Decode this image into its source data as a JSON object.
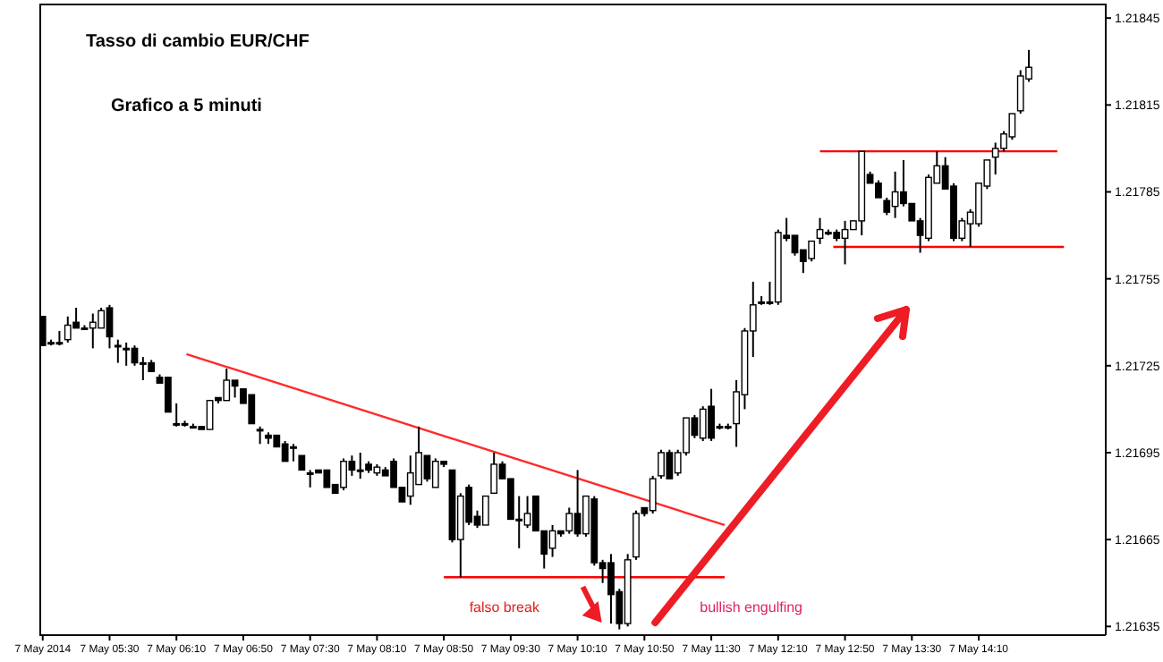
{
  "chart_data": {
    "type": "candlestick",
    "title": "Tasso di cambio EUR/CHF",
    "subtitle": "Grafico a 5 minuti",
    "annotations": [
      "falso break",
      "bullish engulfing"
    ],
    "color": "#000000",
    "x": [
      "2014-05-07T04:50",
      "2014-05-07T04:55",
      "2014-05-07T05:00",
      "2014-05-07T05:05",
      "2014-05-07T05:10",
      "2014-05-07T05:15",
      "2014-05-07T05:20",
      "2014-05-07T05:25",
      "2014-05-07T05:30",
      "2014-05-07T05:35",
      "2014-05-07T05:40",
      "2014-05-07T05:45",
      "2014-05-07T05:50",
      "2014-05-07T05:55",
      "2014-05-07T06:00",
      "2014-05-07T06:05",
      "2014-05-07T06:10",
      "2014-05-07T06:15",
      "2014-05-07T06:20",
      "2014-05-07T06:25",
      "2014-05-07T06:30",
      "2014-05-07T06:35",
      "2014-05-07T06:40",
      "2014-05-07T06:45",
      "2014-05-07T06:50",
      "2014-05-07T06:55",
      "2014-05-07T07:00",
      "2014-05-07T07:05",
      "2014-05-07T07:10",
      "2014-05-07T07:15",
      "2014-05-07T07:20",
      "2014-05-07T07:25",
      "2014-05-07T07:30",
      "2014-05-07T07:35",
      "2014-05-07T07:40",
      "2014-05-07T07:45",
      "2014-05-07T07:50",
      "2014-05-07T07:55",
      "2014-05-07T08:00",
      "2014-05-07T08:05",
      "2014-05-07T08:10",
      "2014-05-07T08:15",
      "2014-05-07T08:20",
      "2014-05-07T08:25",
      "2014-05-07T08:30",
      "2014-05-07T08:35",
      "2014-05-07T08:40",
      "2014-05-07T08:45",
      "2014-05-07T08:50",
      "2014-05-07T08:55",
      "2014-05-07T09:00",
      "2014-05-07T09:05",
      "2014-05-07T09:10",
      "2014-05-07T09:15",
      "2014-05-07T09:20",
      "2014-05-07T09:25",
      "2014-05-07T09:30",
      "2014-05-07T09:35",
      "2014-05-07T09:40",
      "2014-05-07T09:45",
      "2014-05-07T09:50",
      "2014-05-07T09:55",
      "2014-05-07T10:00",
      "2014-05-07T10:05",
      "2014-05-07T10:10",
      "2014-05-07T10:15",
      "2014-05-07T10:20",
      "2014-05-07T10:25",
      "2014-05-07T10:30",
      "2014-05-07T10:35",
      "2014-05-07T10:40",
      "2014-05-07T10:45",
      "2014-05-07T10:50",
      "2014-05-07T10:55",
      "2014-05-07T11:00",
      "2014-05-07T11:05",
      "2014-05-07T11:10",
      "2014-05-07T11:15",
      "2014-05-07T11:20",
      "2014-05-07T11:25",
      "2014-05-07T11:30",
      "2014-05-07T11:35",
      "2014-05-07T11:40",
      "2014-05-07T11:45",
      "2014-05-07T11:50",
      "2014-05-07T11:55",
      "2014-05-07T12:00",
      "2014-05-07T12:05",
      "2014-05-07T12:10",
      "2014-05-07T12:15",
      "2014-05-07T12:20",
      "2014-05-07T12:25",
      "2014-05-07T12:30",
      "2014-05-07T12:35",
      "2014-05-07T12:40",
      "2014-05-07T12:45",
      "2014-05-07T12:50",
      "2014-05-07T12:55",
      "2014-05-07T13:00",
      "2014-05-07T13:05",
      "2014-05-07T13:10",
      "2014-05-07T13:15",
      "2014-05-07T13:20",
      "2014-05-07T13:25",
      "2014-05-07T13:30",
      "2014-05-07T13:35",
      "2014-05-07T13:40",
      "2014-05-07T13:45",
      "2014-05-07T13:50",
      "2014-05-07T13:55",
      "2014-05-07T14:00",
      "2014-05-07T14:05",
      "2014-05-07T14:10",
      "2014-05-07T14:15",
      "2014-05-07T14:20",
      "2014-05-07T14:25",
      "2014-05-07T14:30",
      "2014-05-07T14:35",
      "2014-05-07T14:40"
    ],
    "ohlc": [
      [
        1.21742,
        1.21742,
        1.21732,
        1.21732
      ],
      [
        1.21733,
        1.21734,
        1.21732,
        1.21733
      ],
      [
        1.21733,
        1.21737,
        1.21732,
        1.21733
      ],
      [
        1.21734,
        1.21742,
        1.21733,
        1.21739
      ],
      [
        1.2174,
        1.21745,
        1.21738,
        1.21738
      ],
      [
        1.21738,
        1.21739,
        1.21738,
        1.21738
      ],
      [
        1.21738,
        1.21743,
        1.21731,
        1.2174
      ],
      [
        1.21738,
        1.21745,
        1.21738,
        1.21744
      ],
      [
        1.21745,
        1.21746,
        1.21731,
        1.21735
      ],
      [
        1.21732,
        1.21734,
        1.21726,
        1.21732
      ],
      [
        1.21731,
        1.21733,
        1.21725,
        1.21731
      ],
      [
        1.21731,
        1.21732,
        1.21725,
        1.21726
      ],
      [
        1.21726,
        1.21728,
        1.2172,
        1.21726
      ],
      [
        1.21726,
        1.21727,
        1.21723,
        1.21723
      ],
      [
        1.21721,
        1.21722,
        1.21719,
        1.21719
      ],
      [
        1.21721,
        1.21721,
        1.21709,
        1.21709
      ],
      [
        1.21705,
        1.21712,
        1.21704,
        1.21705
      ],
      [
        1.21705,
        1.21706,
        1.21704,
        1.21705
      ],
      [
        1.21704,
        1.21705,
        1.21704,
        1.21704
      ],
      [
        1.21704,
        1.21704,
        1.21703,
        1.21703
      ],
      [
        1.21703,
        1.21713,
        1.21703,
        1.21713
      ],
      [
        1.21714,
        1.21714,
        1.21712,
        1.21713
      ],
      [
        1.21713,
        1.21724,
        1.21713,
        1.2172
      ],
      [
        1.2172,
        1.2172,
        1.21714,
        1.21718
      ],
      [
        1.21717,
        1.21717,
        1.21712,
        1.21712
      ],
      [
        1.21715,
        1.21715,
        1.21705,
        1.21705
      ],
      [
        1.21703,
        1.21704,
        1.21698,
        1.21703
      ],
      [
        1.21701,
        1.21702,
        1.21698,
        1.217
      ],
      [
        1.21701,
        1.21701,
        1.21697,
        1.21697
      ],
      [
        1.21698,
        1.21699,
        1.21692,
        1.21692
      ],
      [
        1.21697,
        1.21698,
        1.21692,
        1.21697
      ],
      [
        1.21694,
        1.21694,
        1.21689,
        1.21689
      ],
      [
        1.21688,
        1.21689,
        1.21683,
        1.21688
      ],
      [
        1.21689,
        1.21689,
        1.21688,
        1.21688
      ],
      [
        1.21689,
        1.21689,
        1.21683,
        1.21683
      ],
      [
        1.21684,
        1.21684,
        1.21681,
        1.21681
      ],
      [
        1.21683,
        1.21693,
        1.21682,
        1.21692
      ],
      [
        1.21692,
        1.21694,
        1.21687,
        1.21689
      ],
      [
        1.21689,
        1.21695,
        1.21686,
        1.21689
      ],
      [
        1.21691,
        1.21692,
        1.21688,
        1.21689
      ],
      [
        1.21688,
        1.21691,
        1.21687,
        1.2169
      ],
      [
        1.21689,
        1.2169,
        1.21687,
        1.21687
      ],
      [
        1.21692,
        1.21693,
        1.21683,
        1.21683
      ],
      [
        1.21683,
        1.21683,
        1.21678,
        1.21678
      ],
      [
        1.2168,
        1.21694,
        1.21677,
        1.21688
      ],
      [
        1.21684,
        1.21704,
        1.21684,
        1.21695
      ],
      [
        1.21694,
        1.21694,
        1.21685,
        1.21686
      ],
      [
        1.21683,
        1.21693,
        1.21683,
        1.21692
      ],
      [
        1.21692,
        1.21692,
        1.2169,
        1.21691
      ],
      [
        1.21689,
        1.21689,
        1.21664,
        1.21665
      ],
      [
        1.21665,
        1.21681,
        1.21652,
        1.2168
      ],
      [
        1.21683,
        1.21684,
        1.2167,
        1.21671
      ],
      [
        1.21673,
        1.21675,
        1.21669,
        1.2167
      ],
      [
        1.2167,
        1.2168,
        1.2167,
        1.2168
      ],
      [
        1.21681,
        1.21695,
        1.21681,
        1.21691
      ],
      [
        1.21691,
        1.21692,
        1.21686,
        1.21686
      ],
      [
        1.21686,
        1.21686,
        1.21672,
        1.21672
      ],
      [
        1.21672,
        1.2168,
        1.21662,
        1.21672
      ],
      [
        1.2167,
        1.2168,
        1.21669,
        1.21674
      ],
      [
        1.2168,
        1.2168,
        1.21668,
        1.21668
      ],
      [
        1.21668,
        1.21668,
        1.21655,
        1.2166
      ],
      [
        1.21662,
        1.2167,
        1.21659,
        1.21668
      ],
      [
        1.21668,
        1.21668,
        1.21666,
        1.21667
      ],
      [
        1.21668,
        1.21676,
        1.21667,
        1.21674
      ],
      [
        1.21674,
        1.21689,
        1.21666,
        1.21667
      ],
      [
        1.21667,
        1.2168,
        1.21666,
        1.2168
      ],
      [
        1.21679,
        1.2168,
        1.21656,
        1.21657
      ],
      [
        1.21657,
        1.21658,
        1.2165,
        1.21655
      ],
      [
        1.21657,
        1.2166,
        1.21636,
        1.21646
      ],
      [
        1.21647,
        1.21648,
        1.21634,
        1.21636
      ],
      [
        1.21636,
        1.2166,
        1.21635,
        1.21658
      ],
      [
        1.21659,
        1.21675,
        1.21658,
        1.21674
      ],
      [
        1.21676,
        1.21676,
        1.21673,
        1.21674
      ],
      [
        1.21675,
        1.21687,
        1.21674,
        1.21686
      ],
      [
        1.21687,
        1.21696,
        1.21686,
        1.21695
      ],
      [
        1.21695,
        1.21696,
        1.21686,
        1.21686
      ],
      [
        1.21688,
        1.21696,
        1.21687,
        1.21695
      ],
      [
        1.21695,
        1.21707,
        1.21694,
        1.21707
      ],
      [
        1.21707,
        1.21708,
        1.217,
        1.21701
      ],
      [
        1.217,
        1.21711,
        1.21699,
        1.2171
      ],
      [
        1.21711,
        1.21717,
        1.21699,
        1.217
      ],
      [
        1.21704,
        1.21705,
        1.21703,
        1.21704
      ],
      [
        1.21704,
        1.21705,
        1.21703,
        1.21704
      ],
      [
        1.21705,
        1.2172,
        1.21697,
        1.21716
      ],
      [
        1.21715,
        1.21738,
        1.2171,
        1.21737
      ],
      [
        1.21737,
        1.21754,
        1.21728,
        1.21746
      ],
      [
        1.21747,
        1.21749,
        1.21746,
        1.21747
      ],
      [
        1.21747,
        1.21754,
        1.21746,
        1.21747
      ],
      [
        1.21747,
        1.21772,
        1.21746,
        1.21771
      ],
      [
        1.2177,
        1.21776,
        1.21768,
        1.21769
      ],
      [
        1.2177,
        1.2177,
        1.21763,
        1.21764
      ],
      [
        1.21765,
        1.21765,
        1.21757,
        1.21761
      ],
      [
        1.21762,
        1.21768,
        1.21761,
        1.21768
      ],
      [
        1.21769,
        1.21776,
        1.21767,
        1.21772
      ],
      [
        1.21771,
        1.21772,
        1.2177,
        1.21771
      ],
      [
        1.21771,
        1.21772,
        1.21768,
        1.21769
      ],
      [
        1.21769,
        1.21775,
        1.2176,
        1.21772
      ],
      [
        1.21772,
        1.21775,
        1.21772,
        1.21775
      ],
      [
        1.21775,
        1.21799,
        1.2177,
        1.21799
      ],
      [
        1.21791,
        1.21792,
        1.21788,
        1.21788
      ],
      [
        1.21788,
        1.21789,
        1.21783,
        1.21783
      ],
      [
        1.21782,
        1.21783,
        1.21777,
        1.21778
      ],
      [
        1.2178,
        1.21792,
        1.21776,
        1.21785
      ],
      [
        1.21785,
        1.21796,
        1.2178,
        1.21781
      ],
      [
        1.21781,
        1.21781,
        1.21775,
        1.21775
      ],
      [
        1.21775,
        1.21776,
        1.21764,
        1.2177
      ],
      [
        1.21769,
        1.21791,
        1.21768,
        1.2179
      ],
      [
        1.21788,
        1.21799,
        1.21788,
        1.21794
      ],
      [
        1.21794,
        1.21797,
        1.21786,
        1.21786
      ],
      [
        1.21787,
        1.21788,
        1.21768,
        1.21769
      ],
      [
        1.21769,
        1.21776,
        1.21768,
        1.21775
      ],
      [
        1.21774,
        1.21779,
        1.21766,
        1.21778
      ],
      [
        1.21774,
        1.21788,
        1.21773,
        1.21788
      ],
      [
        1.21787,
        1.21796,
        1.21786,
        1.21796
      ],
      [
        1.21797,
        1.21802,
        1.21791,
        1.218
      ],
      [
        1.218,
        1.21806,
        1.21799,
        1.21805
      ],
      [
        1.21804,
        1.21812,
        1.21803,
        1.21812
      ],
      [
        1.21813,
        1.21827,
        1.21812,
        1.21825
      ],
      [
        1.21824,
        1.21834,
        1.21823,
        1.21828
      ]
    ],
    "series": [
      {
        "type": "line",
        "color": "#ff2a2a",
        "x": [
          "2014-05-07T06:16",
          "2014-05-07T11:38"
        ],
        "values": [
          1.21729,
          1.2167
        ]
      },
      {
        "type": "line",
        "color": "#ff0000",
        "x": [
          "2014-05-07T08:50",
          "2014-05-07T11:38"
        ],
        "values": [
          1.21652,
          1.21652
        ]
      },
      {
        "type": "line",
        "color": "#ff0000",
        "x": [
          "2014-05-07T12:35",
          "2014-05-07T14:57"
        ],
        "values": [
          1.21799,
          1.21799
        ]
      },
      {
        "type": "line",
        "color": "#ff0000",
        "x": [
          "2014-05-07T12:43",
          "2014-05-07T15:01"
        ],
        "values": [
          1.21766,
          1.21766
        ]
      }
    ],
    "xlim": [
      "2014-05-07T04:48",
      "2014-05-07T15:26"
    ],
    "xticks": [
      {
        "value": "2014-05-07T04:50",
        "label": "7 May 2014"
      },
      {
        "value": "2014-05-07T05:30",
        "label": "7 May 05:30"
      },
      {
        "value": "2014-05-07T06:10",
        "label": "7 May 06:10"
      },
      {
        "value": "2014-05-07T06:50",
        "label": "7 May 06:50"
      },
      {
        "value": "2014-05-07T07:30",
        "label": "7 May 07:30"
      },
      {
        "value": "2014-05-07T08:10",
        "label": "7 May 08:10"
      },
      {
        "value": "2014-05-07T08:50",
        "label": "7 May 08:50"
      },
      {
        "value": "2014-05-07T09:30",
        "label": "7 May 09:30"
      },
      {
        "value": "2014-05-07T10:10",
        "label": "7 May 10:10"
      },
      {
        "value": "2014-05-07T10:50",
        "label": "7 May 10:50"
      },
      {
        "value": "2014-05-07T11:30",
        "label": "7 May 11:30"
      },
      {
        "value": "2014-05-07T12:10",
        "label": "7 May 12:10"
      },
      {
        "value": "2014-05-07T12:50",
        "label": "7 May 12:50"
      },
      {
        "value": "2014-05-07T13:30",
        "label": "7 May 13:30"
      },
      {
        "value": "2014-05-07T14:10",
        "label": "7 May 14:10"
      }
    ],
    "ylim": [
      1.21632,
      1.2185
    ],
    "yticks": [
      1.21635,
      1.21665,
      1.21695,
      1.21725,
      1.21755,
      1.21785,
      1.21815,
      1.21845
    ]
  }
}
